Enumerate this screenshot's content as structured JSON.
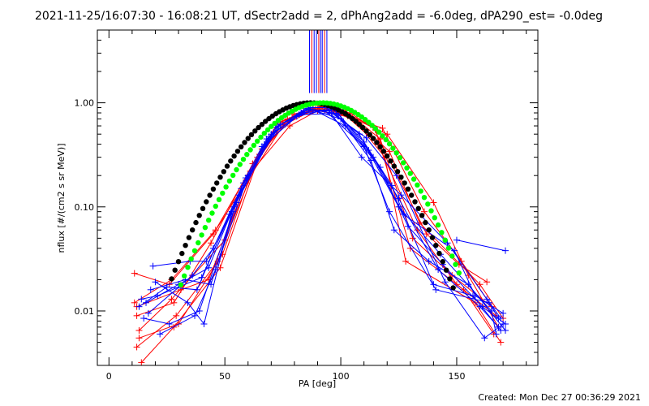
{
  "title": "2021-11-25/16:07:30 - 16:08:21 UT, dSectr2add = 2, dPhAng2add = -6.0deg, dPA290_est= -0.0deg",
  "footer": "Created: Mon Dec 27 00:36:29 2021",
  "colors": {
    "red": "#ff0000",
    "blue": "#0000ff",
    "black": "#000000",
    "green": "#00ff00"
  },
  "chart_data": {
    "type": "line",
    "xlabel": "PA [deg]",
    "ylabel": "nflux [#/(cm2 s sr MeV)]",
    "xlim": [
      -5,
      185
    ],
    "ylim": [
      0.003,
      5
    ],
    "yscale": "log",
    "xticks": [
      {
        "v": 0,
        "label": "0"
      },
      {
        "v": 50,
        "label": "50"
      },
      {
        "v": 100,
        "label": "100"
      },
      {
        "v": 150,
        "label": "150"
      }
    ],
    "xminor": [
      10,
      20,
      30,
      40,
      60,
      70,
      80,
      90,
      110,
      120,
      130,
      140,
      160,
      170,
      180
    ],
    "yticks": [
      {
        "v": 0.01,
        "label": "0.01"
      },
      {
        "v": 0.1,
        "label": "0.10"
      },
      {
        "v": 1,
        "label": "1.00"
      }
    ],
    "yminor": [
      0.004,
      0.005,
      0.006,
      0.007,
      0.008,
      0.009,
      0.02,
      0.03,
      0.04,
      0.05,
      0.06,
      0.07,
      0.08,
      0.09,
      0.2,
      0.3,
      0.4,
      0.5,
      0.6,
      0.7,
      0.8,
      0.9,
      2,
      3,
      4
    ],
    "vertical_lines": [
      {
        "x": 86.5,
        "color": "blue"
      },
      {
        "x": 87.5,
        "color": "red"
      },
      {
        "x": 88.5,
        "color": "blue"
      },
      {
        "x": 89.5,
        "color": "blue"
      },
      {
        "x": 90.5,
        "color": "red"
      },
      {
        "x": 91.3,
        "color": "blue"
      },
      {
        "x": 92.0,
        "color": "blue"
      },
      {
        "x": 93.0,
        "color": "red"
      },
      {
        "x": 94.0,
        "color": "blue"
      }
    ],
    "model_curves": [
      {
        "color": "black",
        "center": 87,
        "sigma": 21.5,
        "xmin": 27,
        "xmax": 149
      },
      {
        "color": "green",
        "center": 92,
        "sigma": 21.5,
        "xmin": 31,
        "xmax": 152
      }
    ],
    "series": [
      {
        "color": "red",
        "points": [
          [
            12,
            0.009
          ],
          [
            28,
            0.012
          ],
          [
            44,
            0.045
          ],
          [
            62,
            0.26
          ],
          [
            73,
            0.65
          ],
          [
            88,
            0.86
          ],
          [
            102,
            0.84
          ],
          [
            117,
            0.45
          ],
          [
            131,
            0.05
          ],
          [
            148,
            0.022
          ],
          [
            165,
            0.011
          ]
        ]
      },
      {
        "color": "red",
        "points": [
          [
            11,
            0.012
          ],
          [
            27,
            0.02
          ],
          [
            46,
            0.06
          ],
          [
            64,
            0.3
          ],
          [
            76,
            0.62
          ],
          [
            89,
            0.87
          ],
          [
            101,
            0.8
          ],
          [
            116,
            0.4
          ],
          [
            133,
            0.06
          ],
          [
            150,
            0.018
          ],
          [
            167,
            0.009
          ]
        ]
      },
      {
        "color": "red",
        "points": [
          [
            12,
            0.0045
          ],
          [
            29,
            0.009
          ],
          [
            47,
            0.03
          ],
          [
            60,
            0.2
          ],
          [
            78,
            0.6
          ],
          [
            90,
            0.84
          ],
          [
            105,
            0.72
          ],
          [
            118,
            0.57
          ],
          [
            136,
            0.09
          ],
          [
            152,
            0.03
          ],
          [
            164,
            0.012
          ]
        ]
      },
      {
        "color": "red",
        "points": [
          [
            13,
            0.0055
          ],
          [
            30,
            0.0075
          ],
          [
            49,
            0.035
          ],
          [
            63,
            0.27
          ],
          [
            74,
            0.65
          ],
          [
            91,
            0.92
          ],
          [
            103,
            0.75
          ],
          [
            120,
            0.5
          ],
          [
            140,
            0.11
          ],
          [
            155,
            0.022
          ],
          [
            168,
            0.007
          ]
        ]
      },
      {
        "color": "red",
        "points": [
          [
            11,
            0.023
          ],
          [
            26,
            0.018
          ],
          [
            45,
            0.055
          ],
          [
            59,
            0.17
          ],
          [
            77,
            0.7
          ],
          [
            88,
            0.9
          ],
          [
            104,
            0.8
          ],
          [
            115,
            0.55
          ],
          [
            130,
            0.04
          ],
          [
            153,
            0.016
          ],
          [
            166,
            0.006
          ]
        ]
      },
      {
        "color": "red",
        "points": [
          [
            14,
            0.0032
          ],
          [
            28,
            0.007
          ],
          [
            48,
            0.026
          ],
          [
            65,
            0.32
          ],
          [
            80,
            0.78
          ],
          [
            92,
            0.93
          ],
          [
            106,
            0.68
          ],
          [
            119,
            0.3
          ],
          [
            128,
            0.03
          ],
          [
            158,
            0.012
          ],
          [
            169,
            0.005
          ]
        ]
      },
      {
        "color": "red",
        "points": [
          [
            12,
            0.011
          ],
          [
            31,
            0.016
          ],
          [
            43,
            0.02
          ],
          [
            61,
            0.22
          ],
          [
            75,
            0.63
          ],
          [
            87,
            0.85
          ],
          [
            100,
            0.85
          ],
          [
            114,
            0.58
          ],
          [
            137,
            0.055
          ],
          [
            151,
            0.028
          ],
          [
            163,
            0.019
          ]
        ]
      },
      {
        "color": "red",
        "points": [
          [
            13,
            0.0065
          ],
          [
            27,
            0.013
          ],
          [
            50,
            0.048
          ],
          [
            66,
            0.36
          ],
          [
            79,
            0.72
          ],
          [
            93,
            0.9
          ],
          [
            107,
            0.66
          ],
          [
            121,
            0.34
          ],
          [
            134,
            0.07
          ],
          [
            160,
            0.018
          ],
          [
            170,
            0.0085
          ]
        ]
      },
      {
        "color": "blue",
        "points": [
          [
            19,
            0.027
          ],
          [
            35,
            0.03
          ],
          [
            42,
            0.03
          ],
          [
            54,
            0.1
          ],
          [
            68,
            0.45
          ],
          [
            84,
            0.84
          ],
          [
            97,
            0.86
          ],
          [
            110,
            0.42
          ],
          [
            122,
            0.16
          ],
          [
            140,
            0.018
          ],
          [
            157,
            0.014
          ],
          [
            169,
            0.0065
          ]
        ]
      },
      {
        "color": "blue",
        "points": [
          [
            13,
            0.011
          ],
          [
            25,
            0.017
          ],
          [
            38,
            0.016
          ],
          [
            52,
            0.085
          ],
          [
            70,
            0.5
          ],
          [
            86,
            0.87
          ],
          [
            99,
            0.78
          ],
          [
            112,
            0.35
          ],
          [
            125,
            0.12
          ],
          [
            142,
            0.025
          ],
          [
            160,
            0.011
          ],
          [
            168,
            0.007
          ]
        ]
      },
      {
        "color": "blue",
        "points": [
          [
            14,
            0.013
          ],
          [
            21,
            0.014
          ],
          [
            40,
            0.021
          ],
          [
            56,
            0.13
          ],
          [
            72,
            0.58
          ],
          [
            85,
            0.88
          ],
          [
            96,
            0.8
          ],
          [
            111,
            0.46
          ],
          [
            124,
            0.2
          ],
          [
            145,
            0.019
          ],
          [
            162,
            0.0055
          ],
          [
            170,
            0.0075
          ]
        ]
      },
      {
        "color": "blue",
        "points": [
          [
            20,
            0.019
          ],
          [
            34,
            0.012
          ],
          [
            41,
            0.0075
          ],
          [
            53,
            0.09
          ],
          [
            67,
            0.4
          ],
          [
            83,
            0.8
          ],
          [
            95,
            0.84
          ],
          [
            109,
            0.3
          ],
          [
            126,
            0.13
          ],
          [
            146,
            0.045
          ],
          [
            163,
            0.013
          ],
          [
            169,
            0.0085
          ]
        ]
      },
      {
        "color": "blue",
        "points": [
          [
            15,
            0.0085
          ],
          [
            26,
            0.0075
          ],
          [
            39,
            0.01
          ],
          [
            57,
            0.15
          ],
          [
            69,
            0.47
          ],
          [
            82,
            0.77
          ],
          [
            98,
            0.79
          ],
          [
            113,
            0.28
          ],
          [
            123,
            0.06
          ],
          [
            138,
            0.03
          ],
          [
            155,
            0.018
          ],
          [
            171,
            0.0065
          ]
        ]
      },
      {
        "color": "blue",
        "points": [
          [
            18,
            0.016
          ],
          [
            33,
            0.02
          ],
          [
            44,
            0.018
          ],
          [
            55,
            0.11
          ],
          [
            71,
            0.52
          ],
          [
            87,
            0.9
          ],
          [
            94,
            0.9
          ],
          [
            108,
            0.5
          ],
          [
            125,
            0.1
          ],
          [
            143,
            0.035
          ],
          [
            165,
            0.01
          ],
          [
            167,
            0.006
          ]
        ]
      },
      {
        "color": "blue",
        "points": [
          [
            16,
            0.012
          ],
          [
            30,
            0.018
          ],
          [
            43,
            0.026
          ],
          [
            58,
            0.17
          ],
          [
            73,
            0.6
          ],
          [
            86,
            0.88
          ],
          [
            100,
            0.7
          ],
          [
            114,
            0.3
          ],
          [
            127,
            0.085
          ],
          [
            149,
            0.038
          ],
          [
            158,
            0.014
          ],
          [
            170,
            0.0095
          ]
        ]
      },
      {
        "color": "blue",
        "points": [
          [
            17,
            0.0095
          ],
          [
            36,
            0.022
          ],
          [
            45,
            0.04
          ],
          [
            59,
            0.19
          ],
          [
            66,
            0.38
          ],
          [
            81,
            0.74
          ],
          [
            93,
            0.85
          ],
          [
            110,
            0.38
          ],
          [
            121,
            0.09
          ],
          [
            141,
            0.016
          ],
          [
            164,
            0.012
          ],
          [
            168,
            0.0085
          ]
        ]
      },
      {
        "color": "blue",
        "points": [
          [
            22,
            0.006
          ],
          [
            37,
            0.009
          ],
          [
            46,
            0.025
          ],
          [
            60,
            0.2
          ],
          [
            74,
            0.62
          ],
          [
            88,
            0.86
          ],
          [
            102,
            0.6
          ],
          [
            117,
            0.24
          ],
          [
            129,
            0.065
          ],
          [
            144,
            0.028
          ],
          [
            161,
            0.011
          ],
          [
            171,
            0.0075
          ]
        ]
      },
      {
        "color": "blue",
        "points": [
          [
            150,
            0.048
          ],
          [
            171,
            0.038
          ]
        ]
      }
    ]
  }
}
